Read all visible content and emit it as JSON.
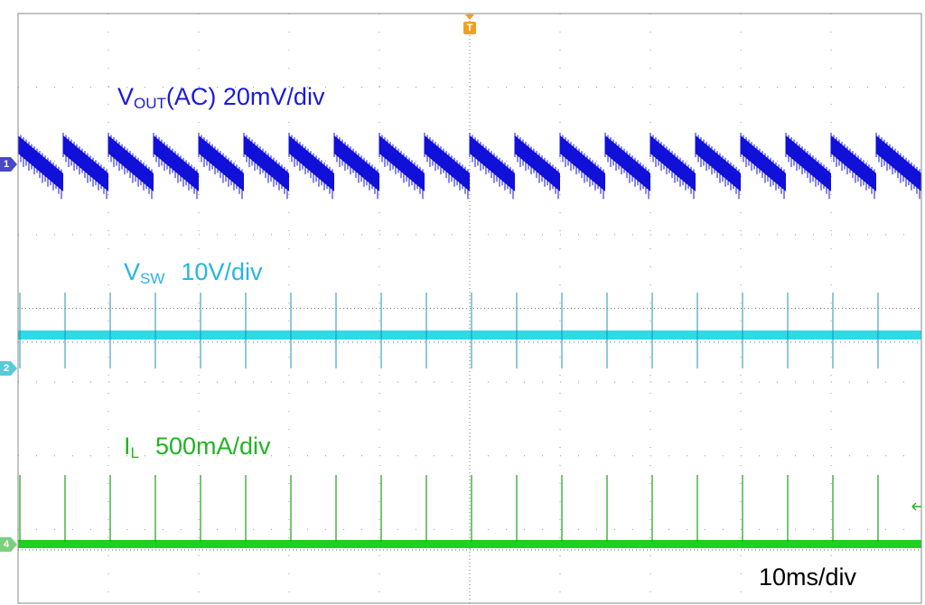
{
  "channels": [
    {
      "marker": "1",
      "symbol": "V",
      "subscript": "OUT",
      "scale": "(AC) 20mV/div"
    },
    {
      "marker": "2",
      "symbol": "V",
      "subscript": "SW",
      "scale": "10V/div"
    },
    {
      "marker": "4",
      "symbol": "I",
      "subscript": "L",
      "scale": "500mA/div"
    }
  ],
  "trigger": "T",
  "timebase": "10ms/div"
}
